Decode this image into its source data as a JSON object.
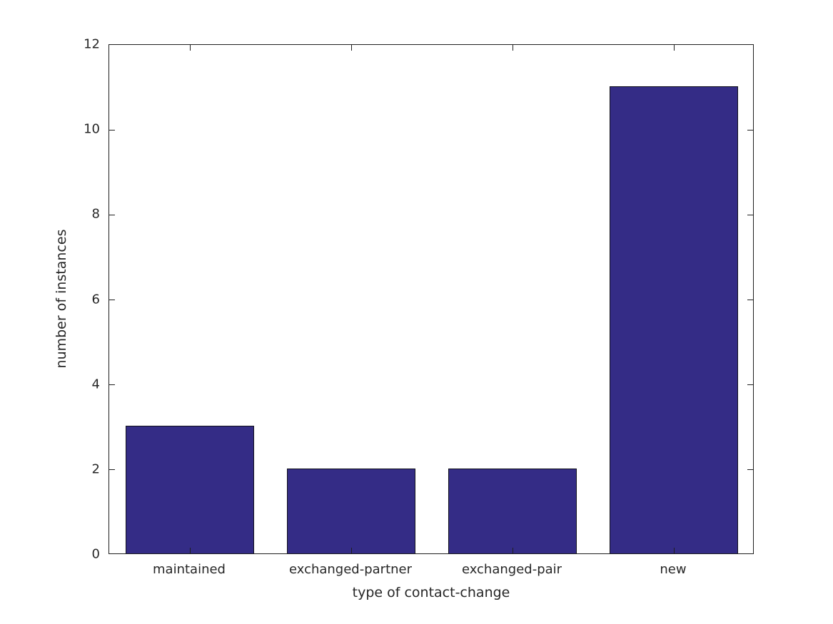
{
  "chart_data": {
    "type": "bar",
    "categories": [
      "maintained",
      "exchanged-partner",
      "exchanged-pair",
      "new"
    ],
    "values": [
      3,
      2,
      2,
      11
    ],
    "title": "",
    "xlabel": "type of contact-change",
    "ylabel": "number of instances",
    "ylim": [
      0,
      12
    ],
    "yticks": [
      0,
      2,
      4,
      6,
      8,
      10,
      12
    ],
    "grid": "off",
    "legend": "none",
    "bar_color": "#342c86",
    "bar_edge_color": "#10101a",
    "axis_color": "#1f1f1f",
    "text_color": "#262626",
    "background_color": "#ffffff"
  }
}
